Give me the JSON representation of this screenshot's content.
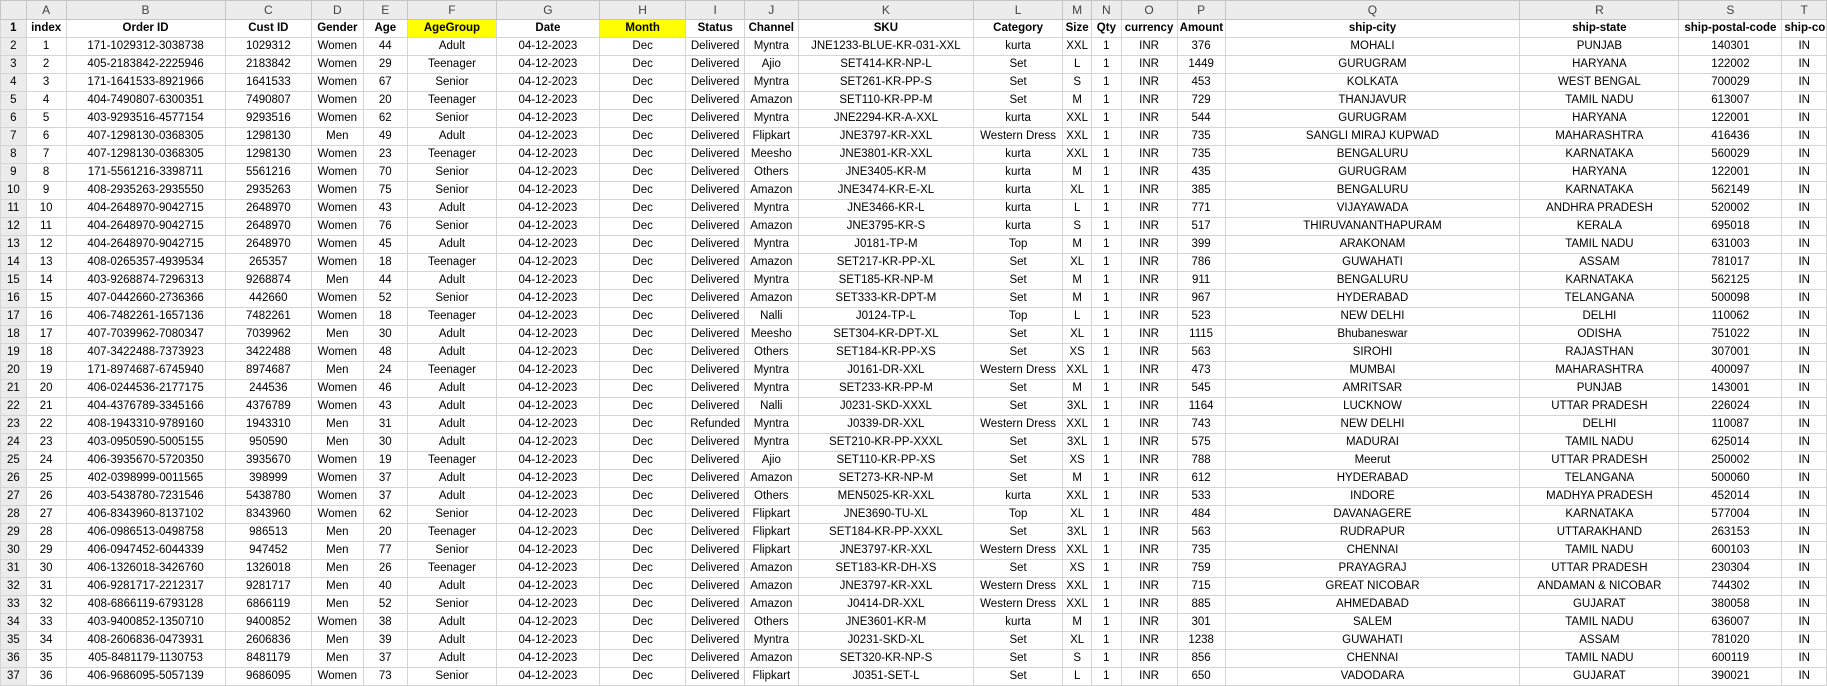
{
  "columns": [
    "A",
    "B",
    "C",
    "D",
    "E",
    "F",
    "G",
    "H",
    "I",
    "J",
    "K",
    "L",
    "M",
    "N",
    "O",
    "P",
    "Q",
    "R",
    "S",
    "T"
  ],
  "highlight_color": "#ffff00",
  "highlighted_headers": [
    "AgeGroup",
    "Month"
  ],
  "headers": [
    "index",
    "Order ID",
    "Cust ID",
    "Gender",
    "Age",
    "AgeGroup",
    "Date",
    "Month",
    "Status",
    "Channel",
    "SKU",
    "Category",
    "Size",
    "Qty",
    "currency",
    "Amount",
    "ship-city",
    "ship-state",
    "ship-postal-code",
    "ship-country"
  ],
  "rows": [
    [
      "1",
      "171-1029312-3038738",
      "1029312",
      "Women",
      "44",
      "Adult",
      "04-12-2023",
      "Dec",
      "Delivered",
      "Myntra",
      "JNE1233-BLUE-KR-031-XXL",
      "kurta",
      "XXL",
      "1",
      "INR",
      "376",
      "MOHALI",
      "PUNJAB",
      "140301",
      "IN"
    ],
    [
      "2",
      "405-2183842-2225946",
      "2183842",
      "Women",
      "29",
      "Teenager",
      "04-12-2023",
      "Dec",
      "Delivered",
      "Ajio",
      "SET414-KR-NP-L",
      "Set",
      "L",
      "1",
      "INR",
      "1449",
      "GURUGRAM",
      "HARYANA",
      "122002",
      "IN"
    ],
    [
      "3",
      "171-1641533-8921966",
      "1641533",
      "Women",
      "67",
      "Senior",
      "04-12-2023",
      "Dec",
      "Delivered",
      "Myntra",
      "SET261-KR-PP-S",
      "Set",
      "S",
      "1",
      "INR",
      "453",
      "KOLKATA",
      "WEST BENGAL",
      "700029",
      "IN"
    ],
    [
      "4",
      "404-7490807-6300351",
      "7490807",
      "Women",
      "20",
      "Teenager",
      "04-12-2023",
      "Dec",
      "Delivered",
      "Amazon",
      "SET110-KR-PP-M",
      "Set",
      "M",
      "1",
      "INR",
      "729",
      "THANJAVUR",
      "TAMIL NADU",
      "613007",
      "IN"
    ],
    [
      "5",
      "403-9293516-4577154",
      "9293516",
      "Women",
      "62",
      "Senior",
      "04-12-2023",
      "Dec",
      "Delivered",
      "Myntra",
      "JNE2294-KR-A-XXL",
      "kurta",
      "XXL",
      "1",
      "INR",
      "544",
      "GURUGRAM",
      "HARYANA",
      "122001",
      "IN"
    ],
    [
      "6",
      "407-1298130-0368305",
      "1298130",
      "Men",
      "49",
      "Adult",
      "04-12-2023",
      "Dec",
      "Delivered",
      "Flipkart",
      "JNE3797-KR-XXL",
      "Western Dress",
      "XXL",
      "1",
      "INR",
      "735",
      "SANGLI MIRAJ KUPWAD",
      "MAHARASHTRA",
      "416436",
      "IN"
    ],
    [
      "7",
      "407-1298130-0368305",
      "1298130",
      "Women",
      "23",
      "Teenager",
      "04-12-2023",
      "Dec",
      "Delivered",
      "Meesho",
      "JNE3801-KR-XXL",
      "kurta",
      "XXL",
      "1",
      "INR",
      "735",
      "BENGALURU",
      "KARNATAKA",
      "560029",
      "IN"
    ],
    [
      "8",
      "171-5561216-3398711",
      "5561216",
      "Women",
      "70",
      "Senior",
      "04-12-2023",
      "Dec",
      "Delivered",
      "Others",
      "JNE3405-KR-M",
      "kurta",
      "M",
      "1",
      "INR",
      "435",
      "GURUGRAM",
      "HARYANA",
      "122001",
      "IN"
    ],
    [
      "9",
      "408-2935263-2935550",
      "2935263",
      "Women",
      "75",
      "Senior",
      "04-12-2023",
      "Dec",
      "Delivered",
      "Amazon",
      "JNE3474-KR-E-XL",
      "kurta",
      "XL",
      "1",
      "INR",
      "385",
      "BENGALURU",
      "KARNATAKA",
      "562149",
      "IN"
    ],
    [
      "10",
      "404-2648970-9042715",
      "2648970",
      "Women",
      "43",
      "Adult",
      "04-12-2023",
      "Dec",
      "Delivered",
      "Myntra",
      "JNE3466-KR-L",
      "kurta",
      "L",
      "1",
      "INR",
      "771",
      "VIJAYAWADA",
      "ANDHRA PRADESH",
      "520002",
      "IN"
    ],
    [
      "11",
      "404-2648970-9042715",
      "2648970",
      "Women",
      "76",
      "Senior",
      "04-12-2023",
      "Dec",
      "Delivered",
      "Amazon",
      "JNE3795-KR-S",
      "kurta",
      "S",
      "1",
      "INR",
      "517",
      "THIRUVANANTHAPURAM",
      "KERALA",
      "695018",
      "IN"
    ],
    [
      "12",
      "404-2648970-9042715",
      "2648970",
      "Women",
      "45",
      "Adult",
      "04-12-2023",
      "Dec",
      "Delivered",
      "Myntra",
      "J0181-TP-M",
      "Top",
      "M",
      "1",
      "INR",
      "399",
      "ARAKONAM",
      "TAMIL NADU",
      "631003",
      "IN"
    ],
    [
      "13",
      "408-0265357-4939534",
      "265357",
      "Women",
      "18",
      "Teenager",
      "04-12-2023",
      "Dec",
      "Delivered",
      "Amazon",
      "SET217-KR-PP-XL",
      "Set",
      "XL",
      "1",
      "INR",
      "786",
      "GUWAHATI",
      "ASSAM",
      "781017",
      "IN"
    ],
    [
      "14",
      "403-9268874-7296313",
      "9268874",
      "Men",
      "44",
      "Adult",
      "04-12-2023",
      "Dec",
      "Delivered",
      "Myntra",
      "SET185-KR-NP-M",
      "Set",
      "M",
      "1",
      "INR",
      "911",
      "BENGALURU",
      "KARNATAKA",
      "562125",
      "IN"
    ],
    [
      "15",
      "407-0442660-2736366",
      "442660",
      "Women",
      "52",
      "Senior",
      "04-12-2023",
      "Dec",
      "Delivered",
      "Amazon",
      "SET333-KR-DPT-M",
      "Set",
      "M",
      "1",
      "INR",
      "967",
      "HYDERABAD",
      "TELANGANA",
      "500098",
      "IN"
    ],
    [
      "16",
      "406-7482261-1657136",
      "7482261",
      "Women",
      "18",
      "Teenager",
      "04-12-2023",
      "Dec",
      "Delivered",
      "Nalli",
      "J0124-TP-L",
      "Top",
      "L",
      "1",
      "INR",
      "523",
      "NEW DELHI",
      "DELHI",
      "110062",
      "IN"
    ],
    [
      "17",
      "407-7039962-7080347",
      "7039962",
      "Men",
      "30",
      "Adult",
      "04-12-2023",
      "Dec",
      "Delivered",
      "Meesho",
      "SET304-KR-DPT-XL",
      "Set",
      "XL",
      "1",
      "INR",
      "1115",
      "Bhubaneswar",
      "ODISHA",
      "751022",
      "IN"
    ],
    [
      "18",
      "407-3422488-7373923",
      "3422488",
      "Women",
      "48",
      "Adult",
      "04-12-2023",
      "Dec",
      "Delivered",
      "Others",
      "SET184-KR-PP-XS",
      "Set",
      "XS",
      "1",
      "INR",
      "563",
      "SIROHI",
      "RAJASTHAN",
      "307001",
      "IN"
    ],
    [
      "19",
      "171-8974687-6745940",
      "8974687",
      "Men",
      "24",
      "Teenager",
      "04-12-2023",
      "Dec",
      "Delivered",
      "Myntra",
      "J0161-DR-XXL",
      "Western Dress",
      "XXL",
      "1",
      "INR",
      "473",
      "MUMBAI",
      "MAHARASHTRA",
      "400097",
      "IN"
    ],
    [
      "20",
      "406-0244536-2177175",
      "244536",
      "Women",
      "46",
      "Adult",
      "04-12-2023",
      "Dec",
      "Delivered",
      "Myntra",
      "SET233-KR-PP-M",
      "Set",
      "M",
      "1",
      "INR",
      "545",
      "AMRITSAR",
      "PUNJAB",
      "143001",
      "IN"
    ],
    [
      "21",
      "404-4376789-3345166",
      "4376789",
      "Women",
      "43",
      "Adult",
      "04-12-2023",
      "Dec",
      "Delivered",
      "Nalli",
      "J0231-SKD-XXXL",
      "Set",
      "3XL",
      "1",
      "INR",
      "1164",
      "LUCKNOW",
      "UTTAR PRADESH",
      "226024",
      "IN"
    ],
    [
      "22",
      "408-1943310-9789160",
      "1943310",
      "Men",
      "31",
      "Adult",
      "04-12-2023",
      "Dec",
      "Refunded",
      "Myntra",
      "J0339-DR-XXL",
      "Western Dress",
      "XXL",
      "1",
      "INR",
      "743",
      "NEW DELHI",
      "DELHI",
      "110087",
      "IN"
    ],
    [
      "23",
      "403-0950590-5005155",
      "950590",
      "Men",
      "30",
      "Adult",
      "04-12-2023",
      "Dec",
      "Delivered",
      "Myntra",
      "SET210-KR-PP-XXXL",
      "Set",
      "3XL",
      "1",
      "INR",
      "575",
      "MADURAI",
      "TAMIL NADU",
      "625014",
      "IN"
    ],
    [
      "24",
      "406-3935670-5720350",
      "3935670",
      "Women",
      "19",
      "Teenager",
      "04-12-2023",
      "Dec",
      "Delivered",
      "Ajio",
      "SET110-KR-PP-XS",
      "Set",
      "XS",
      "1",
      "INR",
      "788",
      "Meerut",
      "UTTAR PRADESH",
      "250002",
      "IN"
    ],
    [
      "25",
      "402-0398999-0011565",
      "398999",
      "Women",
      "37",
      "Adult",
      "04-12-2023",
      "Dec",
      "Delivered",
      "Amazon",
      "SET273-KR-NP-M",
      "Set",
      "M",
      "1",
      "INR",
      "612",
      "HYDERABAD",
      "TELANGANA",
      "500060",
      "IN"
    ],
    [
      "26",
      "403-5438780-7231546",
      "5438780",
      "Women",
      "37",
      "Adult",
      "04-12-2023",
      "Dec",
      "Delivered",
      "Others",
      "MEN5025-KR-XXL",
      "kurta",
      "XXL",
      "1",
      "INR",
      "533",
      "INDORE",
      "MADHYA PRADESH",
      "452014",
      "IN"
    ],
    [
      "27",
      "406-8343960-8137102",
      "8343960",
      "Women",
      "62",
      "Senior",
      "04-12-2023",
      "Dec",
      "Delivered",
      "Flipkart",
      "JNE3690-TU-XL",
      "Top",
      "XL",
      "1",
      "INR",
      "484",
      "DAVANAGERE",
      "KARNATAKA",
      "577004",
      "IN"
    ],
    [
      "28",
      "406-0986513-0498758",
      "986513",
      "Men",
      "20",
      "Teenager",
      "04-12-2023",
      "Dec",
      "Delivered",
      "Flipkart",
      "SET184-KR-PP-XXXL",
      "Set",
      "3XL",
      "1",
      "INR",
      "563",
      "RUDRAPUR",
      "UTTARAKHAND",
      "263153",
      "IN"
    ],
    [
      "29",
      "406-0947452-6044339",
      "947452",
      "Men",
      "77",
      "Senior",
      "04-12-2023",
      "Dec",
      "Delivered",
      "Flipkart",
      "JNE3797-KR-XXL",
      "Western Dress",
      "XXL",
      "1",
      "INR",
      "735",
      "CHENNAI",
      "TAMIL NADU",
      "600103",
      "IN"
    ],
    [
      "30",
      "406-1326018-3426760",
      "1326018",
      "Men",
      "26",
      "Teenager",
      "04-12-2023",
      "Dec",
      "Delivered",
      "Amazon",
      "SET183-KR-DH-XS",
      "Set",
      "XS",
      "1",
      "INR",
      "759",
      "PRAYAGRAJ",
      "UTTAR PRADESH",
      "230304",
      "IN"
    ],
    [
      "31",
      "406-9281717-2212317",
      "9281717",
      "Men",
      "40",
      "Adult",
      "04-12-2023",
      "Dec",
      "Delivered",
      "Amazon",
      "JNE3797-KR-XXL",
      "Western Dress",
      "XXL",
      "1",
      "INR",
      "715",
      "GREAT NICOBAR",
      "ANDAMAN & NICOBAR",
      "744302",
      "IN"
    ],
    [
      "32",
      "408-6866119-6793128",
      "6866119",
      "Men",
      "52",
      "Senior",
      "04-12-2023",
      "Dec",
      "Delivered",
      "Amazon",
      "J0414-DR-XXL",
      "Western Dress",
      "XXL",
      "1",
      "INR",
      "885",
      "AHMEDABAD",
      "GUJARAT",
      "380058",
      "IN"
    ],
    [
      "33",
      "403-9400852-1350710",
      "9400852",
      "Women",
      "38",
      "Adult",
      "04-12-2023",
      "Dec",
      "Delivered",
      "Others",
      "JNE3601-KR-M",
      "kurta",
      "M",
      "1",
      "INR",
      "301",
      "SALEM",
      "TAMIL NADU",
      "636007",
      "IN"
    ],
    [
      "34",
      "408-2606836-0473931",
      "2606836",
      "Men",
      "39",
      "Adult",
      "04-12-2023",
      "Dec",
      "Delivered",
      "Myntra",
      "J0231-SKD-XL",
      "Set",
      "XL",
      "1",
      "INR",
      "1238",
      "GUWAHATI",
      "ASSAM",
      "781020",
      "IN"
    ],
    [
      "35",
      "405-8481179-1130753",
      "8481179",
      "Men",
      "37",
      "Adult",
      "04-12-2023",
      "Dec",
      "Delivered",
      "Amazon",
      "SET320-KR-NP-S",
      "Set",
      "S",
      "1",
      "INR",
      "856",
      "CHENNAI",
      "TAMIL NADU",
      "600119",
      "IN"
    ],
    [
      "36",
      "406-9686095-5057139",
      "9686095",
      "Women",
      "73",
      "Senior",
      "04-12-2023",
      "Dec",
      "Delivered",
      "Flipkart",
      "J0351-SET-L",
      "Set",
      "L",
      "1",
      "INR",
      "650",
      "VADODARA",
      "GUJARAT",
      "390021",
      "IN"
    ]
  ]
}
